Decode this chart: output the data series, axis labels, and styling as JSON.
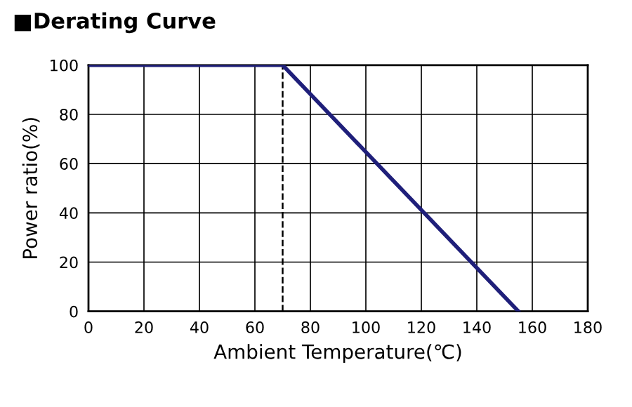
{
  "chart_data": {
    "type": "line",
    "title": "■Derating Curve",
    "xlabel": "Ambient Temperature(℃)",
    "ylabel": "Power ratio(%)",
    "x": [
      0,
      70,
      155
    ],
    "series": [
      {
        "color": "#1f1f7a",
        "values": [
          100,
          100,
          0
        ]
      }
    ],
    "xlim": [
      0,
      180
    ],
    "xticks": [
      0,
      20,
      40,
      60,
      80,
      100,
      120,
      140,
      160,
      180
    ],
    "ylim": [
      0,
      100
    ],
    "yticks": [
      0,
      20,
      40,
      60,
      80,
      100
    ],
    "grid": true,
    "marker": "none",
    "line_style": "solid",
    "ref_lines": [
      {
        "axis": "x",
        "value": 70,
        "color": "#000000",
        "line_style": "dashed"
      }
    ]
  }
}
